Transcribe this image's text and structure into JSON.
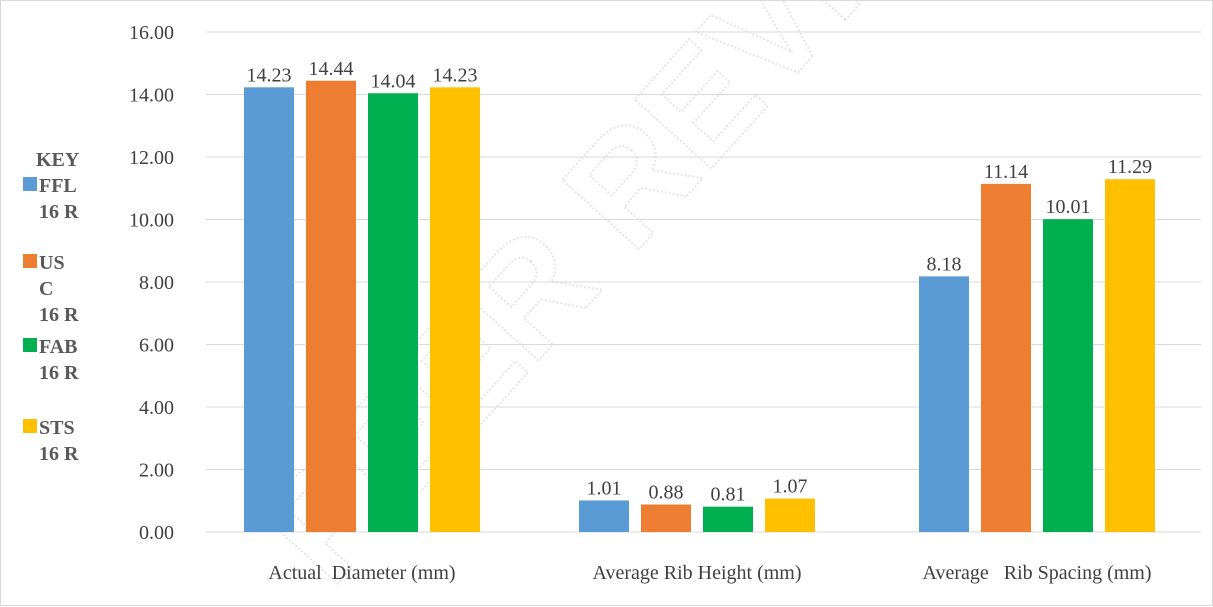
{
  "chart_data": {
    "type": "bar",
    "categories": [
      "Actual  Diameter (mm)",
      "Average Rib Height (mm)",
      "Average   Rib Spacing (mm)"
    ],
    "series": [
      {
        "name": "FFL 16 R",
        "values": [
          14.23,
          1.01,
          8.18
        ],
        "color": "#5b9bd5"
      },
      {
        "name": "USC 16 R",
        "values": [
          14.44,
          0.88,
          11.14
        ],
        "color": "#ed7d31"
      },
      {
        "name": "FAB 16 R",
        "values": [
          14.04,
          0.81,
          10.01
        ],
        "color": "#00b050"
      },
      {
        "name": "STS 16 R",
        "values": [
          14.23,
          1.07,
          11.29
        ],
        "color": "#ffc000"
      }
    ],
    "data_labels": [
      [
        "14.23",
        "1.01",
        "8.18"
      ],
      [
        "14.44",
        "0.88",
        "11.14"
      ],
      [
        "14.04",
        "0.81",
        "10.01"
      ],
      [
        "14.23",
        "1.07",
        "11.29"
      ]
    ],
    "y_ticks": [
      "0.00",
      "2.00",
      "4.00",
      "6.00",
      "8.00",
      "10.00",
      "12.00",
      "14.00",
      "16.00"
    ],
    "ylim": [
      0,
      16
    ],
    "grid": true,
    "legend": {
      "title": "KEY",
      "placement": "left",
      "entries": [
        {
          "lines": [
            "FFL",
            "16 R"
          ],
          "color": "#5b9bd5"
        },
        {
          "lines": [
            "US",
            "C",
            "16 R"
          ],
          "color": "#ed7d31"
        },
        {
          "lines": [
            "FAB",
            "16 R"
          ],
          "color": "#00b050"
        },
        {
          "lines": [
            "STS",
            "16 R"
          ],
          "color": "#ffc000"
        }
      ]
    },
    "watermark": "PEER REVIE"
  }
}
